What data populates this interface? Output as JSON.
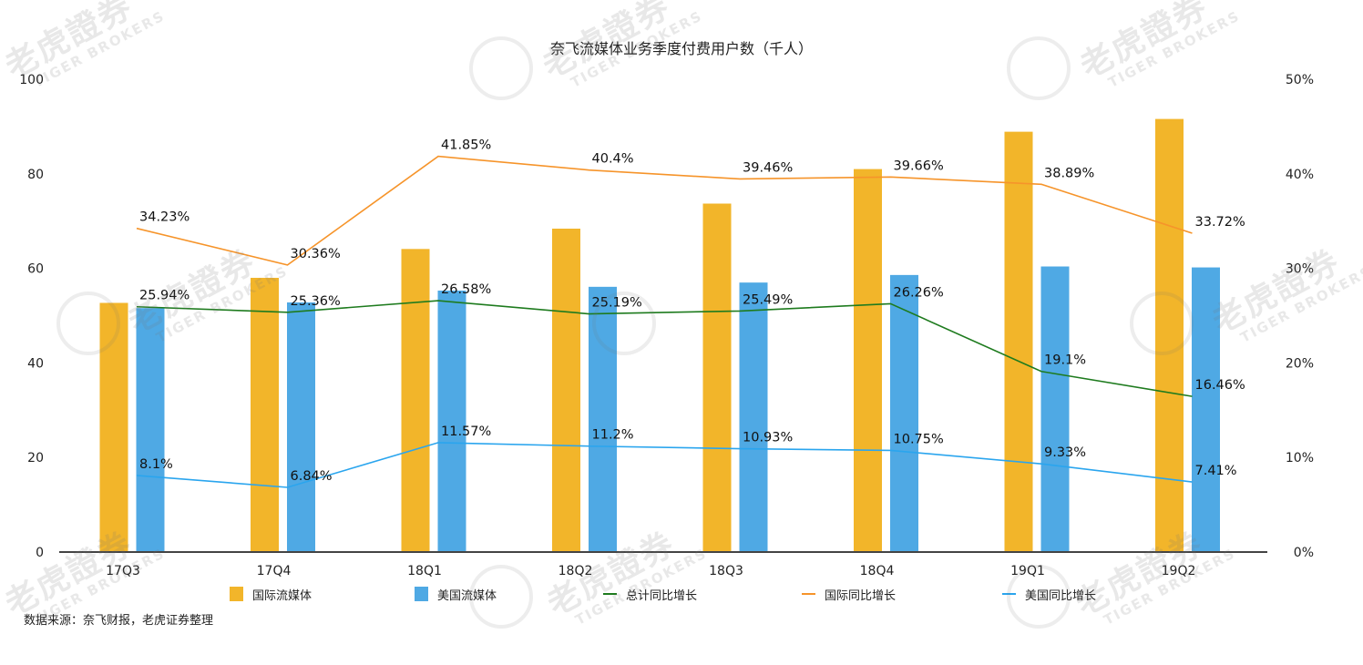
{
  "chart_data": {
    "type": "bar",
    "title": "奈飞流媒体业务季度付费用户数（千人）",
    "xlabel": "",
    "ylabel": "",
    "ylim": [
      0,
      100
    ],
    "y2lim": [
      0,
      50
    ],
    "y_ticks": [
      "0",
      "20",
      "40",
      "60",
      "80",
      "100"
    ],
    "y2_ticks": [
      "0%",
      "10%",
      "20%",
      "30%",
      "40%",
      "50%"
    ],
    "grid": false,
    "legend_position": "bottom",
    "categories": [
      "17Q3",
      "17Q4",
      "18Q1",
      "18Q2",
      "18Q3",
      "18Q4",
      "19Q1",
      "19Q2"
    ],
    "series": [
      {
        "name": "国际流媒体",
        "type": "bar",
        "axis": "left",
        "color": "#F2B52A",
        "values": [
          52.7,
          58.0,
          64.1,
          68.4,
          73.7,
          81.0,
          88.9,
          91.6
        ]
      },
      {
        "name": "美国流媒体",
        "type": "bar",
        "axis": "left",
        "color": "#4FA9E4",
        "values": [
          51.6,
          52.8,
          55.3,
          56.1,
          57.0,
          58.6,
          60.4,
          60.2
        ]
      },
      {
        "name": "总计同比增长",
        "type": "line",
        "axis": "right",
        "color": "#1E7B1E",
        "values": [
          25.94,
          25.36,
          26.58,
          25.19,
          25.49,
          26.26,
          19.1,
          16.46
        ],
        "labels": [
          "25.94%",
          "25.36%",
          "26.58%",
          "25.19%",
          "25.49%",
          "26.26%",
          "19.1%",
          "16.46%"
        ]
      },
      {
        "name": "国际同比增长",
        "type": "line",
        "axis": "right",
        "color": "#F6942A",
        "values": [
          34.23,
          30.36,
          41.85,
          40.4,
          39.46,
          39.66,
          38.89,
          33.72
        ],
        "labels": [
          "34.23%",
          "30.36%",
          "41.85%",
          "40.4%",
          "39.46%",
          "39.66%",
          "38.89%",
          "33.72%"
        ]
      },
      {
        "name": "美国同比增长",
        "type": "line",
        "axis": "right",
        "color": "#2AA5EE",
        "values": [
          8.1,
          6.84,
          11.57,
          11.2,
          10.93,
          10.75,
          9.33,
          7.41
        ],
        "labels": [
          "8.1%",
          "6.84%",
          "11.57%",
          "11.2%",
          "10.93%",
          "10.75%",
          "9.33%",
          "7.41%"
        ]
      }
    ],
    "source": "数据来源：奈飞财报，老虎证券整理"
  },
  "legend": [
    {
      "label": "国际流媒体",
      "kind": "box",
      "color": "#F2B52A"
    },
    {
      "label": "美国流媒体",
      "kind": "box",
      "color": "#4FA9E4"
    },
    {
      "label": "总计同比增长",
      "kind": "line",
      "color": "#1E7B1E"
    },
    {
      "label": "国际同比增长",
      "kind": "line",
      "color": "#F6942A"
    },
    {
      "label": "美国同比增长",
      "kind": "line",
      "color": "#2AA5EE"
    }
  ],
  "watermark": {
    "cn": "老虎證券",
    "en": "TIGER BROKERS"
  }
}
